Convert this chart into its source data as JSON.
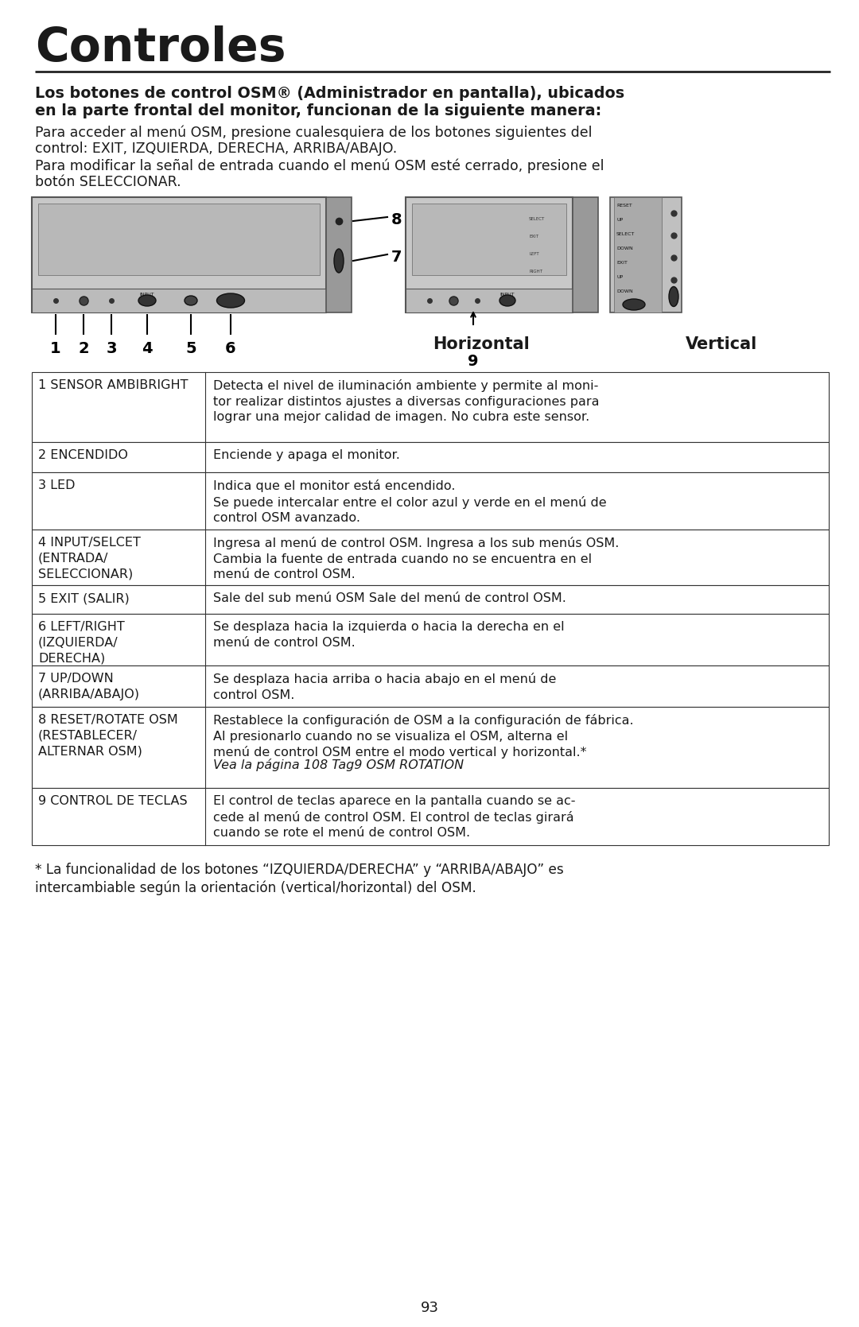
{
  "title": "Controles",
  "bold_heading_line1": "Los botones de control OSM® (Administrador en pantalla), ubicados",
  "bold_heading_line2": "en la parte frontal del monitor, funcionan de la siguiente manera:",
  "para1_line1": "Para acceder al menú OSM, presione cualesquiera de los botones siguientes del",
  "para1_line2": "control: EXIT, IZQUIERDA, DERECHA, ARRIBA/ABAJO.",
  "para2_line1": "Para modificar la señal de entrada cuando el menú OSM esté cerrado, presione el",
  "para2_line2": "botón SELECCIONAR.",
  "horiz_label": "Horizontal",
  "vert_label": "Vertical",
  "table_rows": [
    {
      "label": "1 SENSOR AMBIBRIGHT",
      "desc": "Detecta el nivel de iluminación ambiente y permite al moni-\ntor realizar distintos ajustes a diversas configuraciones para\nlograr una mejor calidad de imagen. No cubra este sensor.",
      "italic_desc": ""
    },
    {
      "label": "2 ENCENDIDO",
      "desc": "Enciende y apaga el monitor.",
      "italic_desc": ""
    },
    {
      "label": "3 LED",
      "desc": "Indica que el monitor está encendido.\nSe puede intercalar entre el color azul y verde en el menú de\ncontrol OSM avanzado.",
      "italic_desc": ""
    },
    {
      "label": "4 INPUT/SELCET\n(ENTRADA/\nSELECCIONAR)",
      "desc": "Ingresa al menú de control OSM. Ingresa a los sub menús OSM.\nCambia la fuente de entrada cuando no se encuentra en el\nmenú de control OSM.",
      "italic_desc": ""
    },
    {
      "label": "5 EXIT (SALIR)",
      "desc": "Sale del sub menú OSM Sale del menú de control OSM.",
      "italic_desc": ""
    },
    {
      "label": "6 LEFT/RIGHT\n(IZQUIERDA/\nDERECHA)",
      "desc": "Se desplaza hacia la izquierda o hacia la derecha en el\nmenú de control OSM.",
      "italic_desc": ""
    },
    {
      "label": "7 UP/DOWN\n(ARRIBA/ABAJO)",
      "desc": "Se desplaza hacia arriba o hacia abajo en el menú de\ncontrol OSM.",
      "italic_desc": ""
    },
    {
      "label": "8 RESET/ROTATE OSM\n(RESTABLECER/\nALTERNAR OSM)",
      "desc": "Restablece la configuración de OSM a la configuración de fábrica.\nAl presionarlo cuando no se visualiza el OSM, alterna el\nmenú de control OSM entre el modo vertical y horizontal.*",
      "italic_desc": "Vea la página 108 Tag9 OSM ROTATION"
    },
    {
      "label": "9 CONTROL DE TECLAS",
      "desc": "El control de teclas aparece en la pantalla cuando se ac-\ncede al menú de control OSM. El control de teclas girará\ncuando se rote el menú de control OSM.",
      "italic_desc": ""
    }
  ],
  "footnote_line1": "* La funcionalidad de los botones “IZQUIERDA/DERECHA” y “ARRIBA/ABAJO” es",
  "footnote_line2": "intercambiable según la orientación (vertical/horizontal) del OSM.",
  "page_num": "93",
  "bg_color": "#ffffff",
  "text_color": "#1a1a1a",
  "table_border_color": "#333333",
  "mon_bg": "#c8c8c8",
  "mon_side": "#888888",
  "mon_dark": "#555555",
  "mon_light": "#dddddd"
}
